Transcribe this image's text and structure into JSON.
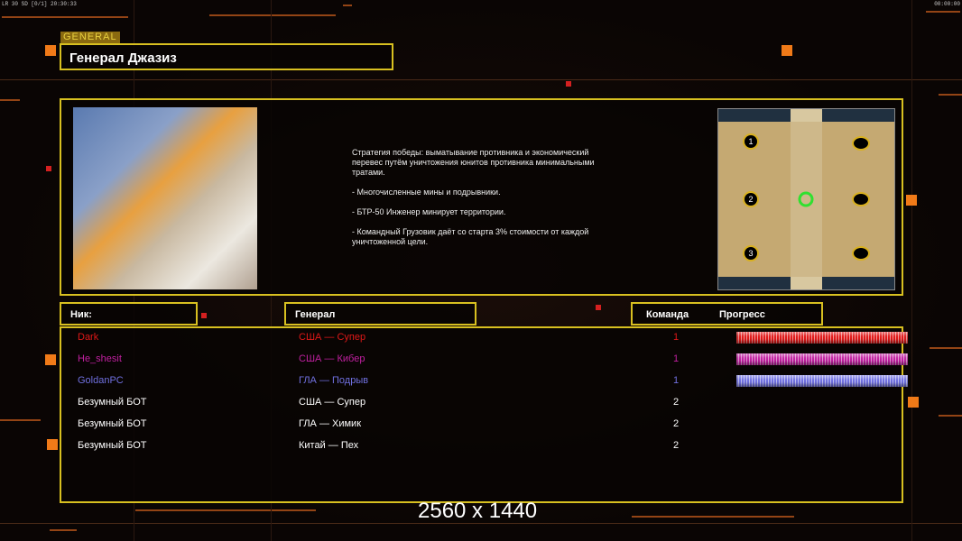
{
  "hud": {
    "left": "LR 30 SD [0/1] 20:30:33",
    "right": "00:00:00"
  },
  "header": {
    "tag": "GENERAL",
    "title": "Генерал Джазиз"
  },
  "description": [
    "Стратегия победы: выматывание противника и экономический\n перевес путём уничтожения юнитов противника минимальными\n тратами.",
    "- Многочисленные мины и подрывники.",
    "- БТР-50 Инженер минирует территории.",
    "- Командный Грузовик даёт со старта 3% стоимости от каждой\n уничтоженной цели."
  ],
  "map": {
    "slots": [
      "1",
      "2",
      "3"
    ]
  },
  "columns": {
    "nick": "Ник:",
    "general": "Генерал",
    "team": "Команда",
    "progress": "Прогресс"
  },
  "players": [
    {
      "nick": "Dark",
      "general": "США — Супер",
      "team": "1",
      "color": "#e01818",
      "progress": 100
    },
    {
      "nick": "He_shesit",
      "general": "США — Кибер",
      "team": "1",
      "color": "#c020a0",
      "progress": 100
    },
    {
      "nick": "GoldanPC",
      "general": "ГЛА — Подрыв",
      "team": "1",
      "color": "#7070e0",
      "progress": 100
    },
    {
      "nick": "Безумный БОТ",
      "general": "США — Супер",
      "team": "2",
      "color": "#ffffff"
    },
    {
      "nick": "Безумный БОТ",
      "general": "ГЛА — Химик",
      "team": "2",
      "color": "#ffffff"
    },
    {
      "nick": "Безумный БОТ",
      "general": "Китай — Пех",
      "team": "2",
      "color": "#ffffff"
    }
  ],
  "resolution": "2560 x 1440",
  "colors": {
    "frame": "#d8c020",
    "accent": "#f07a18"
  }
}
